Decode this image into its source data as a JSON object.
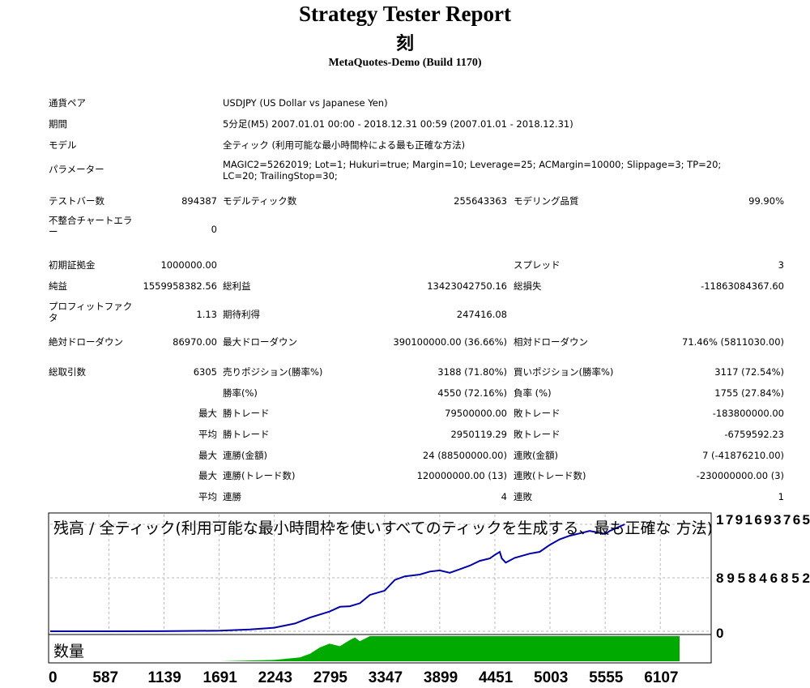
{
  "header": {
    "title": "Strategy Tester Report",
    "subtitle": "刻",
    "build": "MetaQuotes-Demo (Build 1170)"
  },
  "info": {
    "symbol_label": "通貨ペア",
    "symbol_value": "USDJPY (US Dollar vs Japanese Yen)",
    "period_label": "期間",
    "period_value": "5分足(M5) 2007.01.01 00:00 - 2018.12.31 00:59 (2007.01.01 - 2018.12.31)",
    "model_label": "モデル",
    "model_value": "全ティック (利用可能な最小時間枠による最も正確な方法)",
    "params_label": "パラメーター",
    "params_value": "MAGIC2=5262019; Lot=1; Hukuri=true; Margin=10; Leverage=25; ACMargin=10000; Slippage=3; TP=20; LC=20; TrailingStop=30;"
  },
  "stats": {
    "bars_label": "テストバー数",
    "bars_value": "894387",
    "ticks_label": "モデルティック数",
    "ticks_value": "255643363",
    "quality_label": "モデリング品質",
    "quality_value": "99.90%",
    "mismatch_label": "不整合チャートエラー",
    "mismatch_value": "0",
    "deposit_label": "初期証拠金",
    "deposit_value": "1000000.00",
    "spread_label": "スプレッド",
    "spread_value": "3",
    "net_label": "純益",
    "net_value": "1559958382.56",
    "gross_profit_label": "総利益",
    "gross_profit_value": "13423042750.16",
    "gross_loss_label": "総損失",
    "gross_loss_value": "-11863084367.60",
    "pf_label": "プロフィットファクタ",
    "pf_value": "1.13",
    "expected_label": "期待利得",
    "expected_value": "247416.08",
    "abs_dd_label": "絶対ドローダウン",
    "abs_dd_value": "86970.00",
    "max_dd_label": "最大ドローダウン",
    "max_dd_value": "390100000.00 (36.66%)",
    "rel_dd_label": "相対ドローダウン",
    "rel_dd_value": "71.46% (5811030.00)",
    "trades_label": "総取引数",
    "trades_value": "6305",
    "short_label": "売りポジション(勝率%)",
    "short_value": "3188 (71.80%)",
    "long_label": "買いポジション(勝率%)",
    "long_value": "3117 (72.54%)",
    "winrate_label": "勝率(%)",
    "winrate_value": "4550 (72.16%)",
    "lossrate_label": "負率 (%)",
    "lossrate_value": "1755 (27.84%)",
    "max_prefix": "最大",
    "avg_prefix": "平均",
    "largest_win_label": "勝トレード",
    "largest_win_value": "79500000.00",
    "largest_loss_label": "敗トレード",
    "largest_loss_value": "-183800000.00",
    "avg_win_label": "勝トレード",
    "avg_win_value": "2950119.29",
    "avg_loss_label": "敗トレード",
    "avg_loss_value": "-6759592.23",
    "max_consec_win_label": "連勝(金額)",
    "max_consec_win_value": "24 (88500000.00)",
    "max_consec_loss_label": "連敗(金額)",
    "max_consec_loss_value": "7 (-41876210.00)",
    "max_profit_consec_label": "連勝(トレード数)",
    "max_profit_consec_value": "120000000.00 (13)",
    "max_loss_consec_label": "連敗(トレード数)",
    "max_loss_consec_value": "-230000000.00 (3)",
    "avg_consec_win_label": "連勝",
    "avg_consec_win_value": "4",
    "avg_consec_loss_label": "連敗",
    "avg_consec_loss_value": "1"
  },
  "chart_data": {
    "type": "line",
    "title": "残高 / 全ティック(利用可能な最小時間枠を使いすべてのティックを生成する、最も正確な 方法) /",
    "volume_label": "数量",
    "y_ticks": [
      "1791693765",
      "895846852",
      "0"
    ],
    "x_ticks": [
      "0",
      "587",
      "1139",
      "1691",
      "2243",
      "2795",
      "3347",
      "3899",
      "4451",
      "5003",
      "5555",
      "6107"
    ],
    "ylim": [
      0,
      1791693765
    ],
    "xlim": [
      0,
      6600
    ],
    "line_color": "#0000a8",
    "volume_color": "#00aa00",
    "balance": {
      "x": [
        0,
        1100,
        1700,
        2000,
        2243,
        2450,
        2600,
        2795,
        2900,
        3000,
        3100,
        3200,
        3347,
        3450,
        3550,
        3700,
        3800,
        3899,
        4000,
        4100,
        4200,
        4300,
        4400,
        4451,
        4500,
        4520,
        4560,
        4650,
        4800,
        4900,
        5003,
        5100,
        5200,
        5300,
        5400,
        5555,
        5600,
        5750
      ],
      "y": [
        0,
        2000000,
        10000000,
        30000000,
        60000000,
        130000000,
        230000000,
        330000000,
        410000000,
        420000000,
        470000000,
        610000000,
        680000000,
        860000000,
        920000000,
        950000000,
        1000000000,
        1020000000,
        980000000,
        1040000000,
        1100000000,
        1180000000,
        1220000000,
        1280000000,
        1330000000,
        1220000000,
        1150000000,
        1230000000,
        1300000000,
        1330000000,
        1450000000,
        1540000000,
        1600000000,
        1640000000,
        1680000000,
        1630000000,
        1680000000,
        1791693765
      ]
    },
    "volume": {
      "x": [
        0,
        1700,
        2243,
        2500,
        2600,
        2700,
        2795,
        2900,
        3000,
        3050,
        3100,
        3200,
        3347,
        6107,
        6300
      ],
      "y": [
        0,
        0,
        0.05,
        0.15,
        0.3,
        0.55,
        0.7,
        0.6,
        0.85,
        0.95,
        0.8,
        1,
        1,
        1,
        1
      ]
    }
  }
}
